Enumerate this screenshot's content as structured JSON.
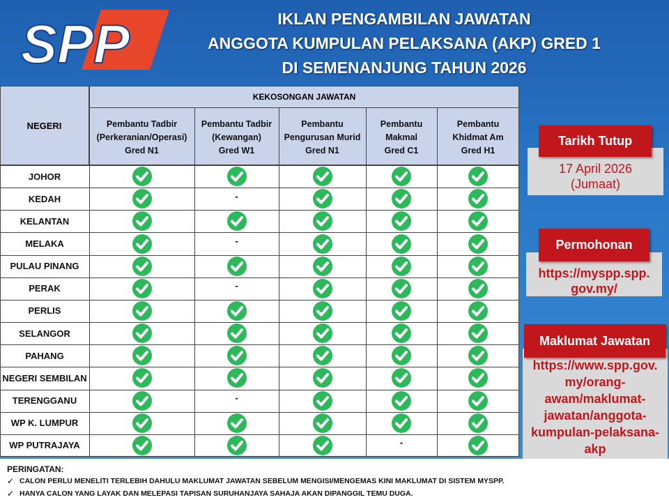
{
  "header": {
    "logo": "SPP",
    "title_lines": [
      "IKLAN PENGAMBILAN JAWATAN",
      "ANGGOTA KUMPULAN PELAKSANA (AKP) GRED 1",
      "DI SEMENANJUNG TAHUN 2026"
    ]
  },
  "table": {
    "state_header": "NEGERI",
    "group_header": "KEKOSONGAN JAWATAN",
    "columns": [
      [
        "Pembantu Tadbir",
        "(Perkeranian/Operasi)",
        "Gred N1"
      ],
      [
        "Pembantu Tadbir",
        "(Kewangan)",
        "Gred W1"
      ],
      [
        "Pembantu",
        "Pengurusan Murid",
        "Gred N1"
      ],
      [
        "Pembantu",
        "Makmal",
        "Gred C1"
      ],
      [
        "Pembantu",
        "Khidmat Am",
        "Gred H1"
      ]
    ],
    "rows": [
      {
        "state": "JOHOR",
        "cells": [
          true,
          true,
          true,
          true,
          true
        ]
      },
      {
        "state": "KEDAH",
        "cells": [
          true,
          "-",
          true,
          true,
          true
        ]
      },
      {
        "state": "KELANTAN",
        "cells": [
          true,
          true,
          true,
          true,
          true
        ]
      },
      {
        "state": "MELAKA",
        "cells": [
          true,
          "-",
          true,
          true,
          true
        ]
      },
      {
        "state": "PULAU PINANG",
        "cells": [
          true,
          true,
          true,
          true,
          true
        ]
      },
      {
        "state": "PERAK",
        "cells": [
          true,
          "-",
          true,
          true,
          true
        ]
      },
      {
        "state": "PERLIS",
        "cells": [
          true,
          true,
          true,
          true,
          true
        ]
      },
      {
        "state": "SELANGOR",
        "cells": [
          true,
          true,
          true,
          true,
          true
        ]
      },
      {
        "state": "PAHANG",
        "cells": [
          true,
          true,
          true,
          true,
          true
        ]
      },
      {
        "state": "NEGERI SEMBILAN",
        "cells": [
          true,
          true,
          true,
          true,
          true
        ]
      },
      {
        "state": "TERENGGANU",
        "cells": [
          true,
          "-",
          true,
          true,
          true
        ]
      },
      {
        "state": "WP K. LUMPUR",
        "cells": [
          true,
          true,
          true,
          true,
          true
        ]
      },
      {
        "state": "WP PUTRAJAYA",
        "cells": [
          true,
          true,
          true,
          "-",
          true
        ]
      }
    ]
  },
  "sidebar": [
    {
      "title": "Tarikh Tutup",
      "lines": [
        "17 April 2026",
        "(Jumaat)"
      ]
    },
    {
      "title": "Permohonan",
      "lines": [
        "https://myspp.spp.",
        "gov.my/"
      ]
    },
    {
      "title": "Maklumat Jawatan",
      "lines": [
        "https://www.spp.gov.",
        "my/orang-",
        "awam/maklumat-",
        "jawatan/anggota-",
        "kumpulan-pelaksana-",
        "akp"
      ]
    }
  ],
  "footer": {
    "heading": "PERINGATAN:",
    "items": [
      "CALON PERLU MENELITI TERLEBIH DAHULU MAKLUMAT JAWATAN SEBELUM MENGISI/MENGEMAS KINI MAKLUMAT DI SISTEM MYSPP.",
      "HANYA CALON YANG LAYAK DAN MELEPASI TAPISAN SURUHANJAYA SAHAJA AKAN DIPANGGIL TEMU DUGA."
    ]
  }
}
